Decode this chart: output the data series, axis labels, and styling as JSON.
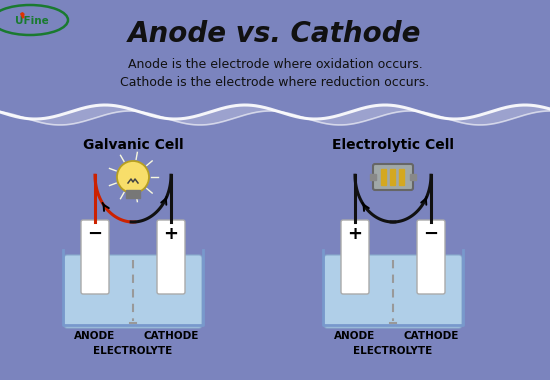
{
  "title": "Anode vs. Cathode",
  "subtitle1": "Anode is the electrode where oxidation occurs.",
  "subtitle2": "Cathode is the electrode where reduction occurs.",
  "bg_color": "#7b84be",
  "cell1_title": "Galvanic Cell",
  "cell2_title": "Electrolytic Cell",
  "anode_label": "ANODE",
  "cathode_label": "CATHODE",
  "electrolyte_label": "ELECTROLYTE",
  "cell1_anode_sign": "−",
  "cell1_cathode_sign": "+",
  "cell2_anode_sign": "+",
  "cell2_cathode_sign": "−",
  "electrolyte_color": "#b0cfe8",
  "beaker_edge": "#7899cc",
  "electrode_color": "#f0f0f0",
  "wire_red": "#cc2200",
  "wire_black": "#111111",
  "label_color": "#111111",
  "title_color": "#111111",
  "logo_green": "#1a7a30",
  "logo_flame": "#dd3300"
}
